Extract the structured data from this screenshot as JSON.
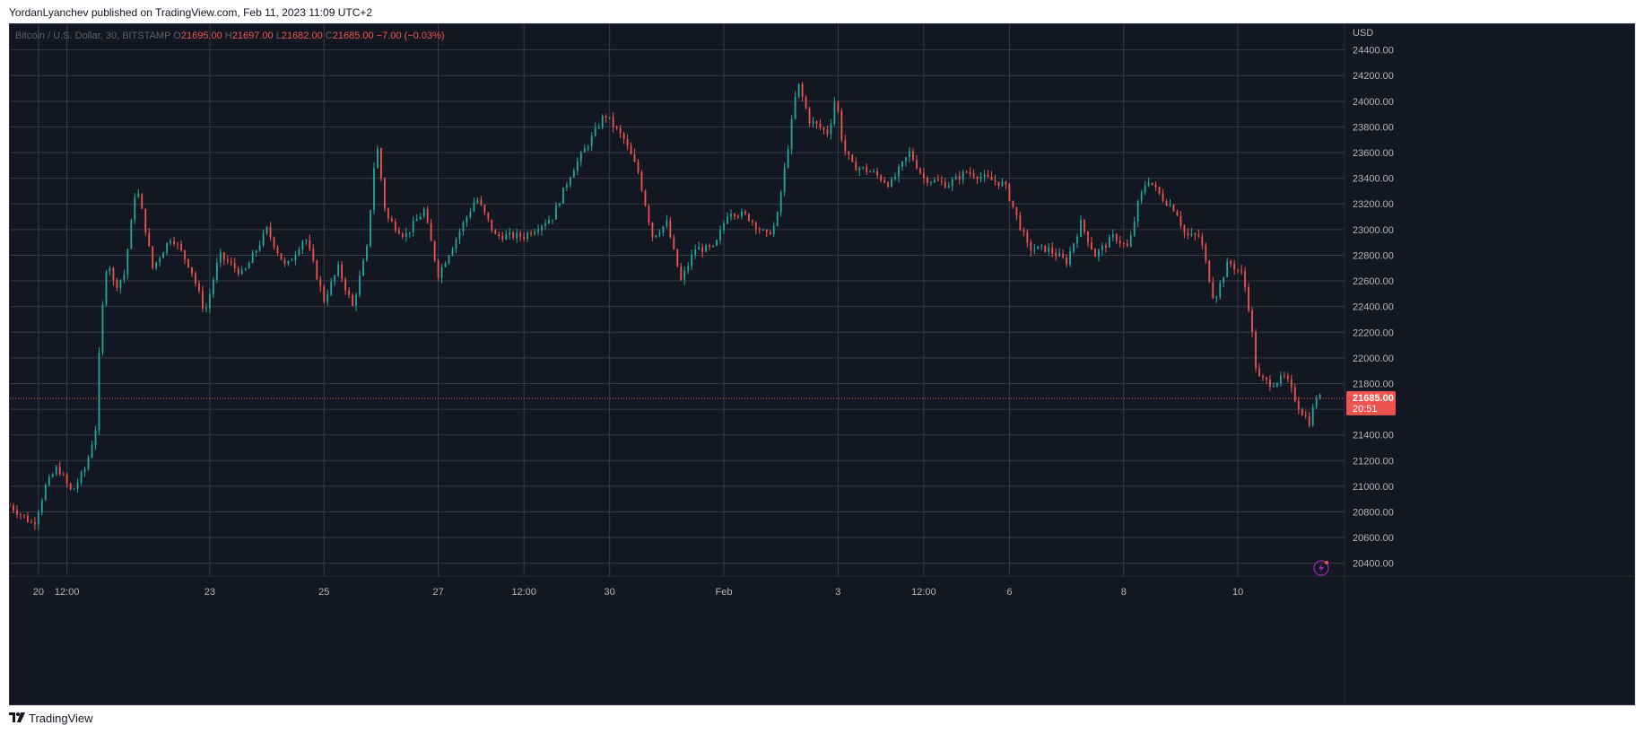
{
  "header": {
    "publish_line": "YordanLyanchev published on TradingView.com, Feb 11, 2023 11:09 UTC+2"
  },
  "legend": {
    "symbol": "Bitcoin / U.S. Dollar, 30, BITSTAMP",
    "o_label": "O",
    "o_value": "21695.00",
    "h_label": "H",
    "h_value": "21697.00",
    "l_label": "L",
    "l_value": "21682.00",
    "c_label": "C",
    "c_value": "21685.00",
    "change": "−7.00 (−0.03%)"
  },
  "price_axis": {
    "currency": "USD",
    "last_price_label": "21685.00",
    "countdown": "20:51"
  },
  "footer": {
    "brand": "TradingView"
  },
  "colors": {
    "background": "#131722",
    "grid": "#363a45",
    "up": "#26a69a",
    "down": "#ef5350",
    "text": "#b2b5be",
    "last_price_bg": "#ef5350"
  },
  "icons": {
    "lightning": "lightning-icon",
    "logo": "tradingview-logo-icon"
  },
  "chart_data": {
    "type": "candlestick",
    "title": "Bitcoin / U.S. Dollar, 30, BITSTAMP",
    "ylabel": "USD",
    "ylim": [
      20300,
      24600
    ],
    "grid": true,
    "y_ticks": [
      20400,
      20600,
      20800,
      21000,
      21200,
      21400,
      21600,
      21800,
      22000,
      22200,
      22400,
      22600,
      22800,
      23000,
      23200,
      23400,
      23600,
      23800,
      24000,
      24200,
      24400
    ],
    "x_ticks": [
      "20",
      "12:00",
      "23",
      "25",
      "27",
      "12:00",
      "30",
      "Feb",
      "3",
      "12:00",
      "6",
      "8",
      "10"
    ],
    "last_price": 21685,
    "price_path": [
      [
        "19 Jan 12:00",
        20850
      ],
      [
        "19 Jan 22:00",
        20700
      ],
      [
        "20 Jan 03:00",
        21000
      ],
      [
        "20 Jan 08:00",
        21150
      ],
      [
        "20 Jan 14:00",
        20950
      ],
      [
        "20 Jan 20:00",
        21150
      ],
      [
        "21 Jan 00:00",
        21450
      ],
      [
        "21 Jan 02:00",
        22200
      ],
      [
        "21 Jan 05:00",
        22800
      ],
      [
        "21 Jan 08:00",
        22550
      ],
      [
        "21 Jan 12:00",
        22650
      ],
      [
        "21 Jan 15:00",
        23050
      ],
      [
        "21 Jan 17:00",
        23350
      ],
      [
        "21 Jan 20:00",
        23100
      ],
      [
        "22 Jan 00:00",
        22700
      ],
      [
        "22 Jan 08:00",
        22950
      ],
      [
        "22 Jan 16:00",
        22700
      ],
      [
        "22 Jan 22:00",
        22350
      ],
      [
        "23 Jan 04:00",
        22800
      ],
      [
        "23 Jan 14:00",
        22650
      ],
      [
        "24 Jan 00:00",
        23000
      ],
      [
        "24 Jan 08:00",
        22700
      ],
      [
        "24 Jan 16:00",
        22950
      ],
      [
        "25 Jan 00:00",
        22450
      ],
      [
        "25 Jan 06:00",
        22700
      ],
      [
        "25 Jan 12:00",
        22400
      ],
      [
        "25 Jan 18:00",
        22850
      ],
      [
        "25 Jan 22:00",
        23700
      ],
      [
        "26 Jan 02:00",
        23100
      ],
      [
        "26 Jan 10:00",
        22950
      ],
      [
        "26 Jan 18:00",
        23150
      ],
      [
        "27 Jan 00:00",
        22650
      ],
      [
        "27 Jan 08:00",
        22950
      ],
      [
        "27 Jan 16:00",
        23250
      ],
      [
        "28 Jan 00:00",
        22950
      ],
      [
        "28 Jan 12:00",
        22950
      ],
      [
        "29 Jan 00:00",
        23100
      ],
      [
        "29 Jan 08:00",
        23450
      ],
      [
        "29 Jan 16:00",
        23700
      ],
      [
        "29 Jan 22:00",
        23900
      ],
      [
        "30 Jan 06:00",
        23700
      ],
      [
        "30 Jan 12:00",
        23450
      ],
      [
        "30 Jan 18:00",
        22950
      ],
      [
        "31 Jan 00:00",
        23050
      ],
      [
        "31 Jan 06:00",
        22600
      ],
      [
        "31 Jan 12:00",
        22850
      ],
      [
        "31 Jan 20:00",
        22850
      ],
      [
        "1 Feb 02:00",
        23150
      ],
      [
        "1 Feb 10:00",
        23100
      ],
      [
        "1 Feb 18:00",
        22950
      ],
      [
        "1 Feb 22:00",
        23050
      ],
      [
        "2 Feb 03:00",
        23650
      ],
      [
        "2 Feb 07:00",
        24150
      ],
      [
        "2 Feb 12:00",
        23850
      ],
      [
        "2 Feb 20:00",
        23750
      ],
      [
        "2 Feb 23:00",
        24050
      ],
      [
        "3 Feb 02:00",
        23650
      ],
      [
        "3 Feb 06:00",
        23500
      ],
      [
        "3 Feb 14:00",
        23450
      ],
      [
        "3 Feb 22:00",
        23350
      ],
      [
        "4 Feb 06:00",
        23600
      ],
      [
        "4 Feb 12:00",
        23400
      ],
      [
        "4 Feb 22:00",
        23350
      ],
      [
        "5 Feb 06:00",
        23450
      ],
      [
        "5 Feb 14:00",
        23400
      ],
      [
        "5 Feb 22:00",
        23350
      ],
      [
        "6 Feb 04:00",
        23050
      ],
      [
        "6 Feb 08:00",
        22850
      ],
      [
        "6 Feb 16:00",
        22850
      ],
      [
        "7 Feb 00:00",
        22750
      ],
      [
        "7 Feb 06:00",
        23050
      ],
      [
        "7 Feb 12:00",
        22800
      ],
      [
        "7 Feb 20:00",
        22950
      ],
      [
        "8 Feb 02:00",
        22850
      ],
      [
        "8 Feb 06:00",
        23200
      ],
      [
        "8 Feb 10:00",
        23400
      ],
      [
        "8 Feb 16:00",
        23250
      ],
      [
        "8 Feb 22:00",
        23150
      ],
      [
        "9 Feb 02:00",
        22950
      ],
      [
        "9 Feb 08:00",
        22950
      ],
      [
        "9 Feb 14:00",
        22450
      ],
      [
        "9 Feb 20:00",
        22750
      ],
      [
        "10 Feb 02:00",
        22650
      ],
      [
        "10 Feb 05:00",
        22350
      ],
      [
        "10 Feb 08:00",
        21850
      ],
      [
        "10 Feb 14:00",
        21800
      ],
      [
        "10 Feb 20:00",
        21850
      ],
      [
        "11 Feb 02:00",
        21600
      ],
      [
        "11 Feb 06:00",
        21500
      ],
      [
        "11 Feb 09:00",
        21700
      ],
      [
        "11 Feb 11:00",
        21685
      ]
    ]
  }
}
